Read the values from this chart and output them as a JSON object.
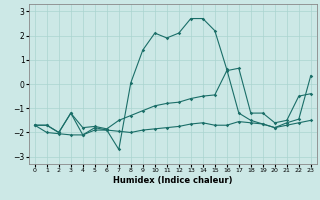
{
  "xlabel": "Humidex (Indice chaleur)",
  "bg_color": "#cce8e6",
  "line_color": "#1a6e68",
  "grid_color": "#aad4d0",
  "spine_color": "#888888",
  "xlim": [
    -0.5,
    23.5
  ],
  "ylim": [
    -3.3,
    3.3
  ],
  "yticks": [
    -3,
    -2,
    -1,
    0,
    1,
    2,
    3
  ],
  "xticks": [
    0,
    1,
    2,
    3,
    4,
    5,
    6,
    7,
    8,
    9,
    10,
    11,
    12,
    13,
    14,
    15,
    16,
    17,
    18,
    19,
    20,
    21,
    22,
    23
  ],
  "line_main_x": [
    0,
    1,
    2,
    3,
    4,
    5,
    6,
    7,
    8,
    9,
    10,
    11,
    12,
    13,
    14,
    15,
    16,
    17,
    18,
    19,
    20,
    21,
    22,
    23
  ],
  "line_main_y": [
    -1.7,
    -1.7,
    -2.0,
    -1.2,
    -2.1,
    -1.8,
    -1.9,
    -2.7,
    0.05,
    1.4,
    2.1,
    1.9,
    2.1,
    2.7,
    2.7,
    2.2,
    0.6,
    -1.2,
    -1.5,
    -1.65,
    -1.8,
    -1.6,
    -1.45,
    0.35
  ],
  "line_upper_x": [
    0,
    1,
    2,
    3,
    4,
    5,
    6,
    7,
    8,
    9,
    10,
    11,
    12,
    13,
    14,
    15,
    16,
    17,
    18,
    19,
    20,
    21,
    22,
    23
  ],
  "line_upper_y": [
    -1.7,
    -1.7,
    -2.0,
    -1.2,
    -1.8,
    -1.75,
    -1.85,
    -1.5,
    -1.3,
    -1.1,
    -0.9,
    -0.8,
    -0.75,
    -0.6,
    -0.5,
    -0.45,
    0.55,
    0.65,
    -1.2,
    -1.2,
    -1.6,
    -1.5,
    -0.5,
    -0.4
  ],
  "line_lower_x": [
    0,
    1,
    2,
    3,
    4,
    5,
    6,
    7,
    8,
    9,
    10,
    11,
    12,
    13,
    14,
    15,
    16,
    17,
    18,
    19,
    20,
    21,
    22,
    23
  ],
  "line_lower_y": [
    -1.7,
    -2.0,
    -2.05,
    -2.1,
    -2.1,
    -1.9,
    -1.9,
    -1.95,
    -2.0,
    -1.9,
    -1.85,
    -1.8,
    -1.75,
    -1.65,
    -1.6,
    -1.7,
    -1.7,
    -1.55,
    -1.6,
    -1.65,
    -1.8,
    -1.7,
    -1.6,
    -1.5
  ]
}
